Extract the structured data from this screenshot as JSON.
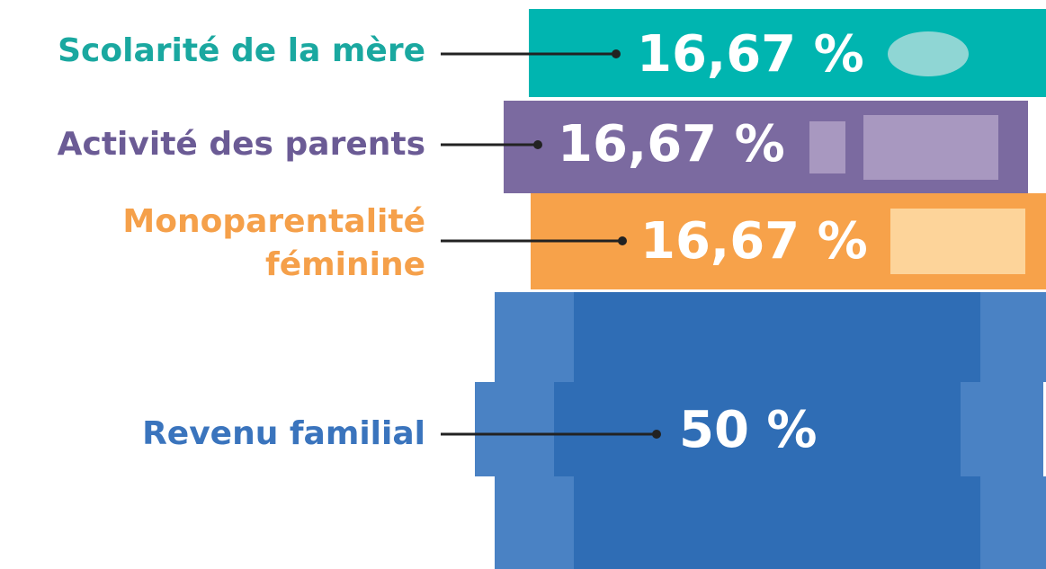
{
  "items": [
    {
      "label": [
        "Scolarité de la mère"
      ],
      "value": "16,67 %"
    },
    {
      "label": [
        "Activité des parents"
      ],
      "value": "16,67 %"
    },
    {
      "label": [
        "Monoparentalité",
        "féminine"
      ],
      "value": "16,67 %"
    },
    {
      "label": [
        "Revenu familial"
      ],
      "value": "50 %"
    }
  ]
}
